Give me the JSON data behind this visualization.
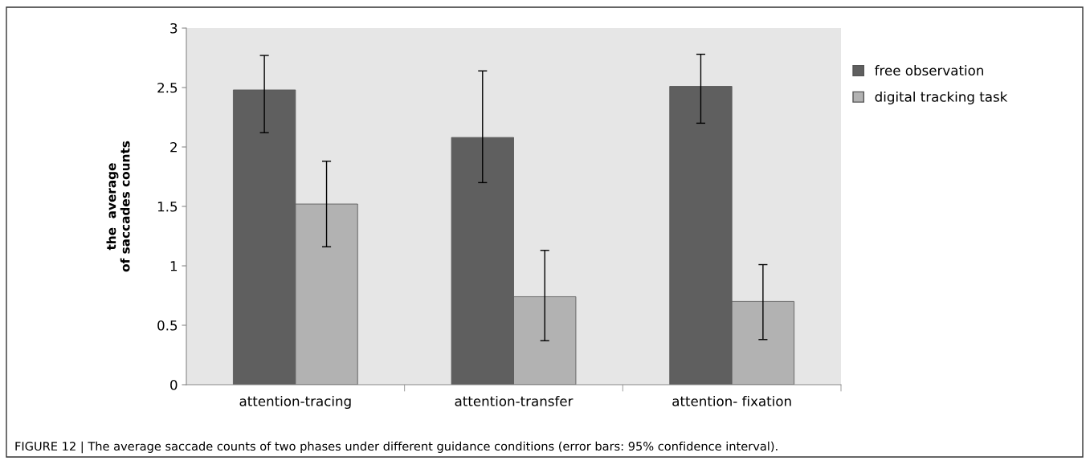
{
  "chart_data": {
    "type": "bar",
    "ylabel": "the  average\nof saccades counts",
    "categories": [
      "attention-tracing",
      "attention-transfer",
      "attention- fixation"
    ],
    "series": [
      {
        "name": "free observation",
        "color": "#5f5f5f",
        "values": [
          2.48,
          2.08,
          2.51
        ],
        "errors": [
          [
            2.12,
            2.77
          ],
          [
            1.7,
            2.64
          ],
          [
            2.2,
            2.78
          ]
        ]
      },
      {
        "name": "digital tracking task",
        "color": "#b2b2b2",
        "values": [
          1.52,
          0.74,
          0.7
        ],
        "errors": [
          [
            1.16,
            1.88
          ],
          [
            0.37,
            1.13
          ],
          [
            0.38,
            1.01
          ]
        ]
      }
    ],
    "ylim": [
      0,
      3
    ],
    "yticks": [
      0,
      0.5,
      1,
      1.5,
      2,
      2.5,
      3
    ],
    "grid": false,
    "legend": "top right",
    "annotations": [
      "FIGURE 12 | The average saccade counts of two phases under different guidance conditions (error bars: 95% confidence interval)."
    ]
  }
}
